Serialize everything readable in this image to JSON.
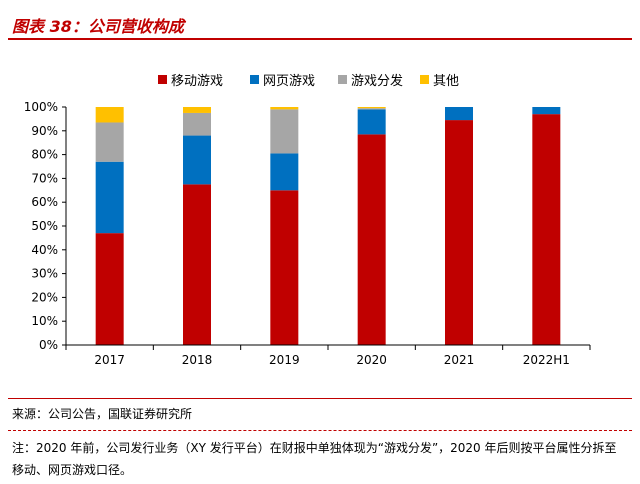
{
  "figure_title": "图表 38：公司营收构成",
  "chart_data": {
    "type": "bar",
    "stacked": true,
    "categories": [
      "2017",
      "2018",
      "2019",
      "2020",
      "2021",
      "2022H1"
    ],
    "series": [
      {
        "name": "移动游戏",
        "color": "#c00000",
        "values": [
          47,
          67.5,
          65,
          88.5,
          94.5,
          97
        ]
      },
      {
        "name": "网页游戏",
        "color": "#0070c0",
        "values": [
          30,
          20.5,
          15.5,
          10.5,
          5.5,
          3
        ]
      },
      {
        "name": "游戏分发",
        "color": "#a6a6a6",
        "values": [
          16.5,
          9.5,
          18.5,
          0.5,
          0,
          0
        ]
      },
      {
        "name": "其他",
        "color": "#ffc000",
        "values": [
          6.5,
          2.5,
          1,
          0.5,
          0,
          0
        ]
      }
    ],
    "ylim": [
      0,
      100
    ],
    "yticks": [
      "0%",
      "10%",
      "20%",
      "30%",
      "40%",
      "50%",
      "60%",
      "70%",
      "80%",
      "90%",
      "100%"
    ],
    "grid": false,
    "legend": "top"
  },
  "source": "来源：公司公告，国联证券研究所",
  "note": "注：2020 年前，公司发行业务（XY 发行平台）在财报中单独体现为“游戏分发”，2020 年后则按平台属性分拆至移动、网页游戏口径。"
}
